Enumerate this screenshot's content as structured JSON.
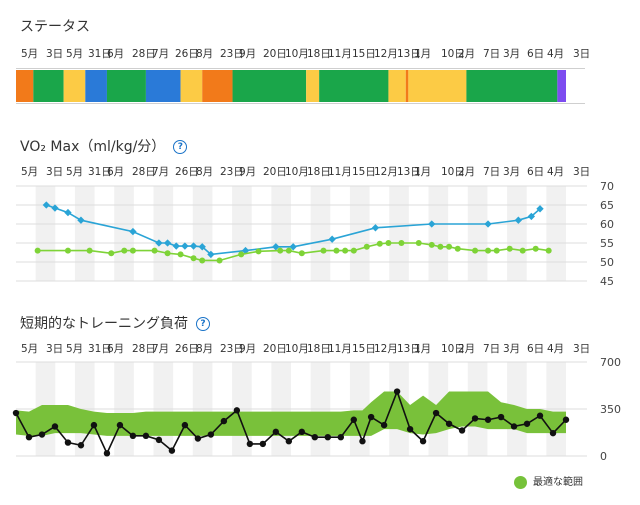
{
  "header": {
    "status_title": "ステータス",
    "vo2_title": "VO₂ Max（ml/kg/分）",
    "load_title": "短期的なトレーニング負荷",
    "help_glyph": "?"
  },
  "date_labels": [
    "5月",
    "3日",
    "5月",
    "31日",
    "6月",
    "28日",
    "7月",
    "26日",
    "8月",
    "23日",
    "9月",
    "20日",
    "10月",
    "18日",
    "11月",
    "15日",
    "12月",
    "13日",
    "1月",
    "10日",
    "2月",
    "7日",
    "3月",
    "6日",
    "4月",
    "3日"
  ],
  "legend": {
    "label": "最適な範囲",
    "color": "#76c23a"
  },
  "colors": {
    "orange": "#f27a1a",
    "green": "#1aa64a",
    "yellow": "#fccb45",
    "blue": "#2a7ad8",
    "purple": "#7d4cf0",
    "vo2": "#2aa4d6",
    "fitness": "#7ed337",
    "load_band": "#79c13a",
    "load_line": "#111111"
  },
  "chart_data": [
    {
      "type": "bar",
      "title": "ステータス",
      "segments": [
        {
          "status": "orange",
          "start": 0,
          "end": 4
        },
        {
          "status": "green",
          "start": 4,
          "end": 11
        },
        {
          "status": "yellow",
          "start": 11,
          "end": 16
        },
        {
          "status": "blue",
          "start": 16,
          "end": 21
        },
        {
          "status": "green",
          "start": 21,
          "end": 30
        },
        {
          "status": "blue",
          "start": 30,
          "end": 38
        },
        {
          "status": "yellow",
          "start": 38,
          "end": 43
        },
        {
          "status": "orange",
          "start": 43,
          "end": 50
        },
        {
          "status": "green",
          "start": 50,
          "end": 67
        },
        {
          "status": "yellow",
          "start": 67,
          "end": 70
        },
        {
          "status": "green",
          "start": 70,
          "end": 86
        },
        {
          "status": "yellow",
          "start": 86,
          "end": 90
        },
        {
          "status": "orange",
          "start": 90,
          "end": 90.6
        },
        {
          "status": "yellow",
          "start": 90.6,
          "end": 104
        },
        {
          "status": "green",
          "start": 104,
          "end": 125
        },
        {
          "status": "purple",
          "start": 125,
          "end": 127
        }
      ]
    },
    {
      "type": "line",
      "title": "VO₂ Max（ml/kg/分）",
      "ylim": [
        45,
        70
      ],
      "yticks": [
        45,
        50,
        55,
        60,
        65,
        70
      ],
      "series": [
        {
          "color": "#2aa4d6",
          "marker": "diamond",
          "x": [
            7,
            9,
            12,
            15,
            27,
            33,
            35,
            37,
            39,
            41,
            43,
            45,
            53,
            60,
            64,
            73,
            83,
            96,
            109,
            116,
            119,
            121
          ],
          "y": [
            65,
            64.2,
            63,
            61,
            58,
            55,
            55,
            54.2,
            54.2,
            54.2,
            54,
            52,
            53,
            54,
            54,
            56,
            59,
            60,
            60,
            61,
            62,
            64
          ]
        },
        {
          "color": "#7ed337",
          "marker": "circle",
          "x": [
            5,
            12,
            17,
            22,
            25,
            27,
            32,
            35,
            38,
            41,
            43,
            47,
            52,
            56,
            61,
            63,
            66,
            71,
            74,
            76,
            78,
            81,
            84,
            86,
            89,
            93,
            96,
            98,
            100,
            102,
            106,
            109,
            111,
            114,
            117,
            120,
            123
          ],
          "y": [
            53,
            53,
            53,
            52.3,
            53,
            53,
            53,
            52.3,
            52,
            51,
            50.4,
            50.4,
            52,
            52.8,
            53,
            53,
            52.3,
            53,
            53,
            53,
            53,
            54,
            54.8,
            55,
            55,
            55,
            54.5,
            54,
            54,
            53.5,
            53,
            53,
            53,
            53.5,
            53,
            53.5,
            53
          ]
        }
      ]
    },
    {
      "type": "line",
      "title": "短期的なトレーニング負荷",
      "ylim": [
        0,
        700
      ],
      "yticks": [
        0,
        350,
        700
      ],
      "band": {
        "x": [
          0,
          3,
          6,
          9,
          12,
          15,
          18,
          21,
          24,
          27,
          30,
          33,
          36,
          39,
          42,
          45,
          48,
          51,
          54,
          57,
          60,
          63,
          66,
          69,
          72,
          75,
          78,
          80,
          82,
          85,
          88,
          91,
          94,
          97,
          100,
          103,
          106,
          109,
          112,
          115,
          118,
          121,
          124,
          127
        ],
        "low": [
          160,
          150,
          150,
          170,
          170,
          170,
          160,
          150,
          150,
          150,
          150,
          150,
          150,
          150,
          150,
          150,
          150,
          150,
          150,
          150,
          150,
          150,
          150,
          150,
          150,
          150,
          150,
          150,
          150,
          200,
          200,
          170,
          160,
          170,
          200,
          220,
          220,
          200,
          200,
          200,
          170,
          170,
          170,
          170
        ],
        "high": [
          340,
          330,
          380,
          380,
          380,
          350,
          330,
          320,
          320,
          320,
          330,
          330,
          330,
          330,
          330,
          330,
          330,
          330,
          330,
          330,
          330,
          330,
          330,
          330,
          330,
          330,
          340,
          340,
          400,
          480,
          480,
          380,
          450,
          380,
          480,
          480,
          480,
          480,
          400,
          380,
          350,
          350,
          330,
          330
        ]
      },
      "series": [
        {
          "color": "#111111",
          "marker": "circle",
          "x": [
            0,
            3,
            6,
            9,
            12,
            15,
            18,
            21,
            24,
            27,
            30,
            33,
            36,
            39,
            42,
            45,
            48,
            51,
            54,
            57,
            60,
            63,
            66,
            69,
            72,
            75,
            78,
            80,
            82,
            85,
            88,
            91,
            94,
            97,
            100,
            103,
            106,
            109,
            112,
            115,
            118,
            121,
            124,
            127
          ],
          "y": [
            320,
            140,
            160,
            220,
            100,
            80,
            230,
            20,
            230,
            150,
            150,
            120,
            40,
            230,
            130,
            160,
            260,
            340,
            90,
            90,
            180,
            110,
            180,
            140,
            140,
            140,
            270,
            110,
            290,
            230,
            480,
            200,
            110,
            320,
            240,
            190,
            280,
            270,
            290,
            220,
            240,
            300,
            170,
            270
          ]
        }
      ]
    }
  ]
}
